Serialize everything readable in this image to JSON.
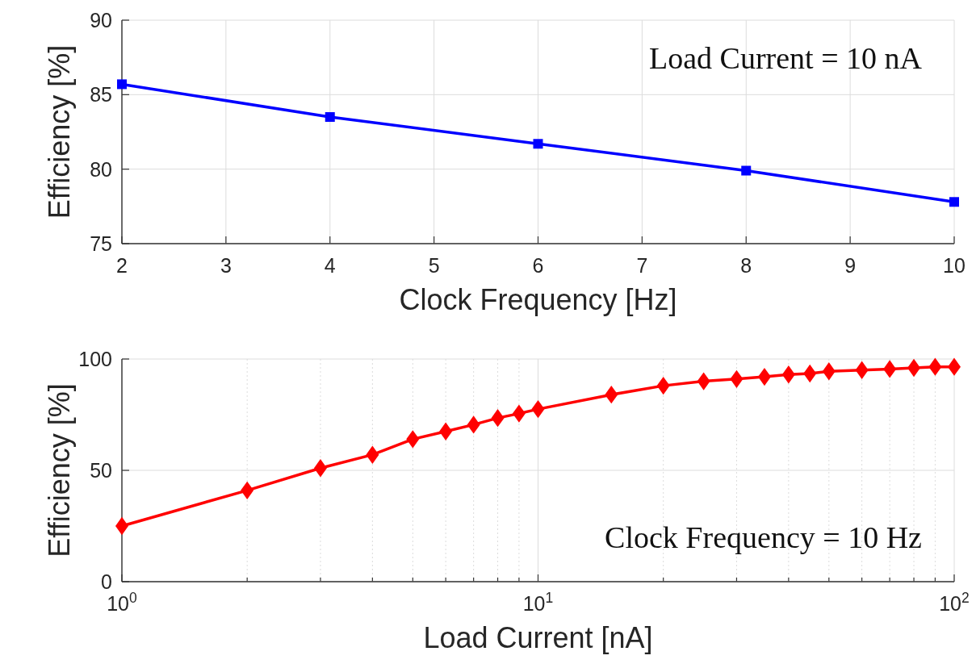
{
  "chart_data": [
    {
      "type": "line",
      "xlabel": "Clock Frequency [Hz]",
      "ylabel": "Efficiency [%]",
      "annotations": [
        "Load Current = 10 nA"
      ],
      "x": [
        2,
        4,
        6,
        8,
        10
      ],
      "series": [
        {
          "color": "#0000ff",
          "values": [
            85.7,
            83.5,
            81.7,
            79.9,
            77.8
          ]
        }
      ],
      "xlim": [
        2,
        10
      ],
      "xticks": [
        2,
        3,
        4,
        5,
        6,
        7,
        8,
        9,
        10
      ],
      "ylim": [
        75,
        90
      ],
      "yticks": [
        75,
        80,
        85,
        90
      ],
      "grid": true,
      "marker": "square",
      "line_style": "solid"
    },
    {
      "type": "line",
      "xlabel": "Load Current [nA]",
      "ylabel": "Efficiency [%]",
      "annotations": [
        "Clock Frequency = 10 Hz"
      ],
      "x": [
        1,
        2,
        3,
        4,
        5,
        6,
        7,
        8,
        9,
        10,
        15,
        20,
        25,
        30,
        35,
        40,
        45,
        50,
        60,
        70,
        80,
        90,
        100
      ],
      "series": [
        {
          "color": "#ff0000",
          "values": [
            25,
            41,
            51,
            57,
            64,
            67.5,
            70.5,
            73.5,
            75.5,
            77.5,
            84,
            88,
            90,
            91,
            92,
            93,
            93.5,
            94.5,
            95,
            95.5,
            96,
            96.5,
            96.5
          ]
        }
      ],
      "xlim": [
        1,
        100
      ],
      "xticks": [
        {
          "value": 1,
          "label": "10$^{0}$"
        },
        {
          "value": 2,
          "label": null
        },
        {
          "value": 3,
          "label": null
        },
        {
          "value": 4,
          "label": null
        },
        {
          "value": 5,
          "label": null
        },
        {
          "value": 6,
          "label": null
        },
        {
          "value": 7,
          "label": null
        },
        {
          "value": 8,
          "label": null
        },
        {
          "value": 9,
          "label": null
        },
        {
          "value": 10,
          "label": "10$^{1}$"
        },
        {
          "value": 20,
          "label": null
        },
        {
          "value": 30,
          "label": null
        },
        {
          "value": 40,
          "label": null
        },
        {
          "value": 50,
          "label": null
        },
        {
          "value": 60,
          "label": null
        },
        {
          "value": 70,
          "label": null
        },
        {
          "value": 80,
          "label": null
        },
        {
          "value": 90,
          "label": null
        },
        {
          "value": 100,
          "label": "10$^{2}$"
        }
      ],
      "ylim": [
        0,
        100
      ],
      "yticks": [
        0,
        50,
        100
      ],
      "log": "x",
      "grid": true,
      "marker": "diamond",
      "line_style": "solid"
    }
  ]
}
